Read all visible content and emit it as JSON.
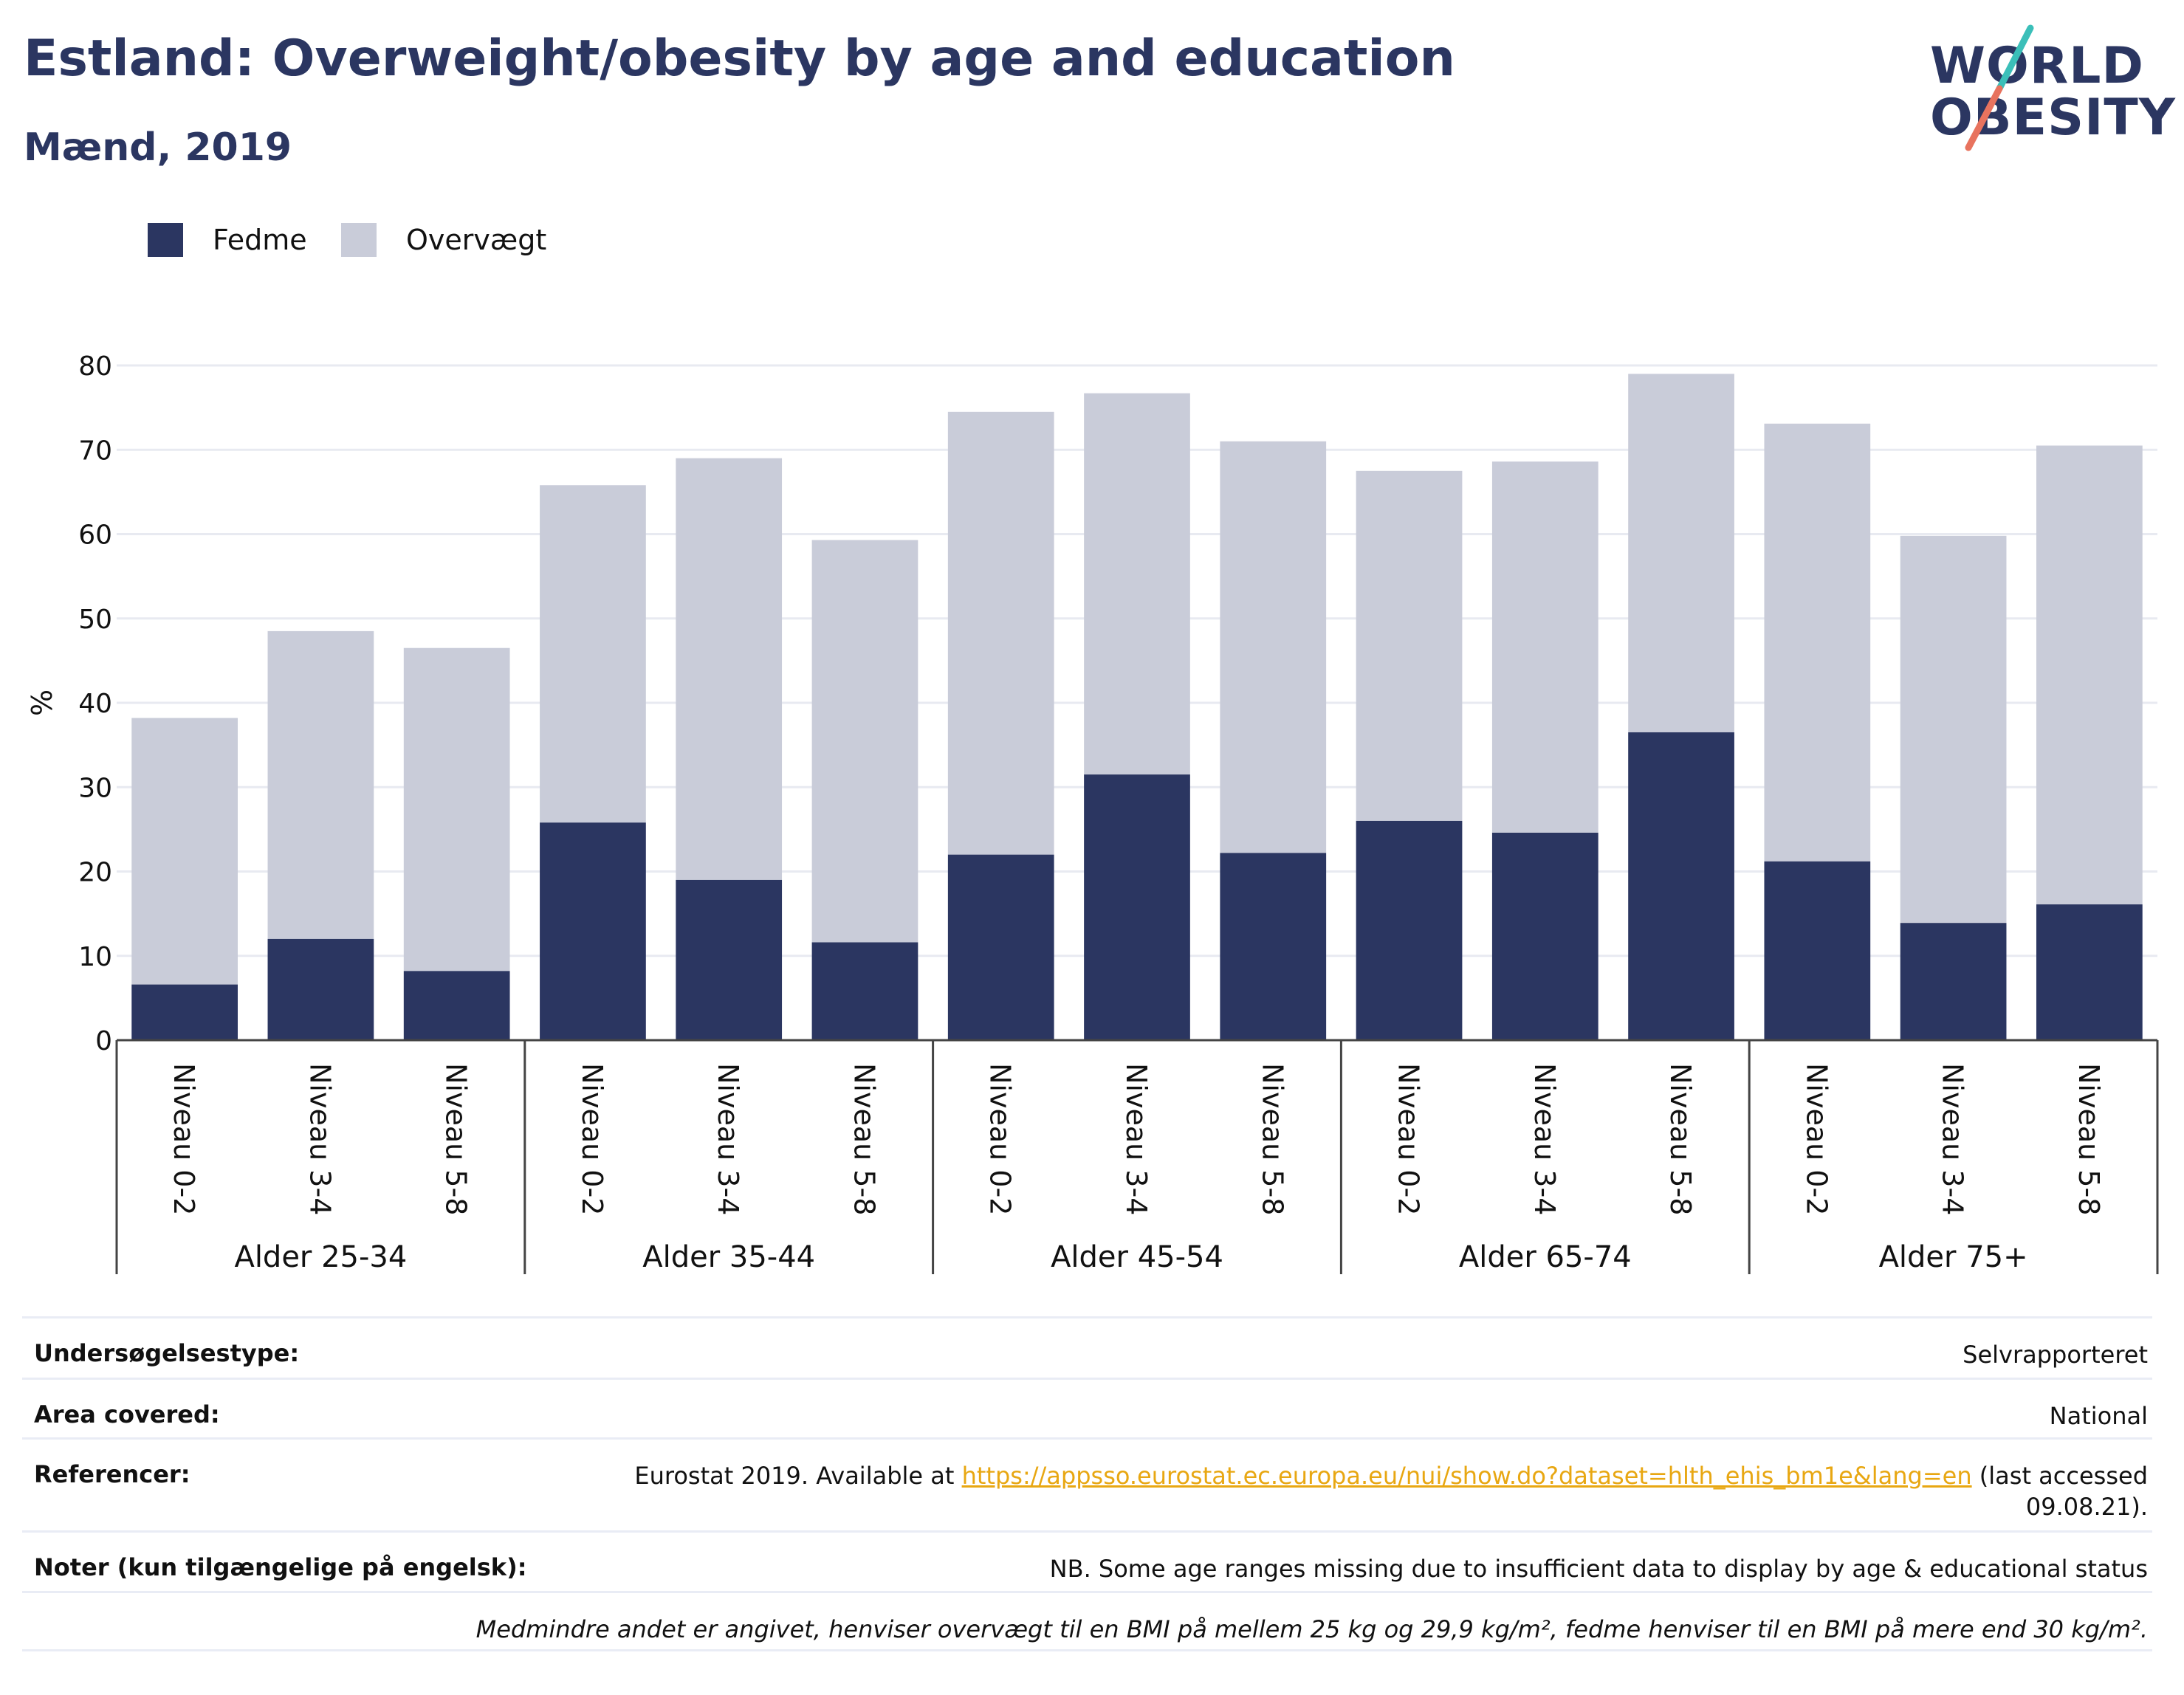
{
  "header": {
    "title": "Estland: Overweight/obesity by age and education",
    "subtitle": "Mænd, 2019"
  },
  "logo": {
    "line1": "WORLD",
    "line2": "OBESITY"
  },
  "colors": {
    "fedme": "#2b3661",
    "overvaegt": "#c9ccd9",
    "title": "#2b3661",
    "link": "#e8a712",
    "logo_teal": "#3bbfb9",
    "logo_coral": "#e8735e"
  },
  "legend": [
    {
      "label": "Fedme",
      "color": "#2b3661"
    },
    {
      "label": "Overvægt",
      "color": "#c9ccd9"
    }
  ],
  "chart_data": {
    "type": "bar",
    "stacked": true,
    "ylabel": "%",
    "ylim": [
      0,
      80
    ],
    "yticks": [
      0,
      10,
      20,
      30,
      40,
      50,
      60,
      70,
      80
    ],
    "grid": true,
    "legend_position": "top-left",
    "groups": [
      {
        "label": "Alder 25-34",
        "categories": [
          "Niveau 0-2",
          "Niveau 3-4",
          "Niveau 5-8"
        ],
        "fedme": [
          6.6,
          12.0,
          8.2
        ],
        "overvaegt": [
          31.6,
          36.5,
          38.3
        ]
      },
      {
        "label": "Alder 35-44",
        "categories": [
          "Niveau 0-2",
          "Niveau 3-4",
          "Niveau 5-8"
        ],
        "fedme": [
          25.8,
          19.0,
          11.6
        ],
        "overvaegt": [
          40.0,
          50.0,
          47.7
        ]
      },
      {
        "label": "Alder 45-54",
        "categories": [
          "Niveau 0-2",
          "Niveau 3-4",
          "Niveau 5-8"
        ],
        "fedme": [
          22.0,
          31.5,
          22.2
        ],
        "overvaegt": [
          52.5,
          45.2,
          48.8
        ]
      },
      {
        "label": "Alder 65-74",
        "categories": [
          "Niveau 0-2",
          "Niveau 3-4",
          "Niveau 5-8"
        ],
        "fedme": [
          26.0,
          24.6,
          36.5
        ],
        "overvaegt": [
          41.5,
          44.0,
          42.5
        ]
      },
      {
        "label": "Alder 75+",
        "categories": [
          "Niveau 0-2",
          "Niveau 3-4",
          "Niveau 5-8"
        ],
        "fedme": [
          21.2,
          13.9,
          16.1
        ],
        "overvaegt": [
          51.9,
          45.9,
          54.4
        ]
      }
    ],
    "series": [
      {
        "name": "Fedme",
        "values": [
          6.6,
          12.0,
          8.2,
          25.8,
          19.0,
          11.6,
          22.0,
          31.5,
          22.2,
          26.0,
          24.6,
          36.5,
          21.2,
          13.9,
          16.1
        ]
      },
      {
        "name": "Overvægt",
        "values": [
          31.6,
          36.5,
          38.3,
          40.0,
          50.0,
          47.7,
          52.5,
          45.2,
          48.8,
          41.5,
          44.0,
          42.5,
          51.9,
          45.9,
          54.4
        ]
      }
    ]
  },
  "meta": {
    "survey_type_label": "Undersøgelsestype:",
    "survey_type_value": "Selvrapporteret",
    "area_label": "Area covered:",
    "area_value": "National",
    "references_label": "Referencer:",
    "references_prefix": "Eurostat 2019. Available at ",
    "references_link": "https://appsso.eurostat.ec.europa.eu/nui/show.do?dataset=hlth_ehis_bm1e&lang=en",
    "references_suffix": " (last accessed",
    "references_date": "09.08.21).",
    "notes_label": "Noter (kun tilgængelige på engelsk):",
    "notes_value": "NB. Some age ranges missing due to insufficient data to display by age & educational status",
    "footnote": "Medmindre andet er angivet, henviser overvægt til en BMI på mellem 25 kg og 29,9 kg/m², fedme henviser til en BMI på mere end 30 kg/m²."
  }
}
